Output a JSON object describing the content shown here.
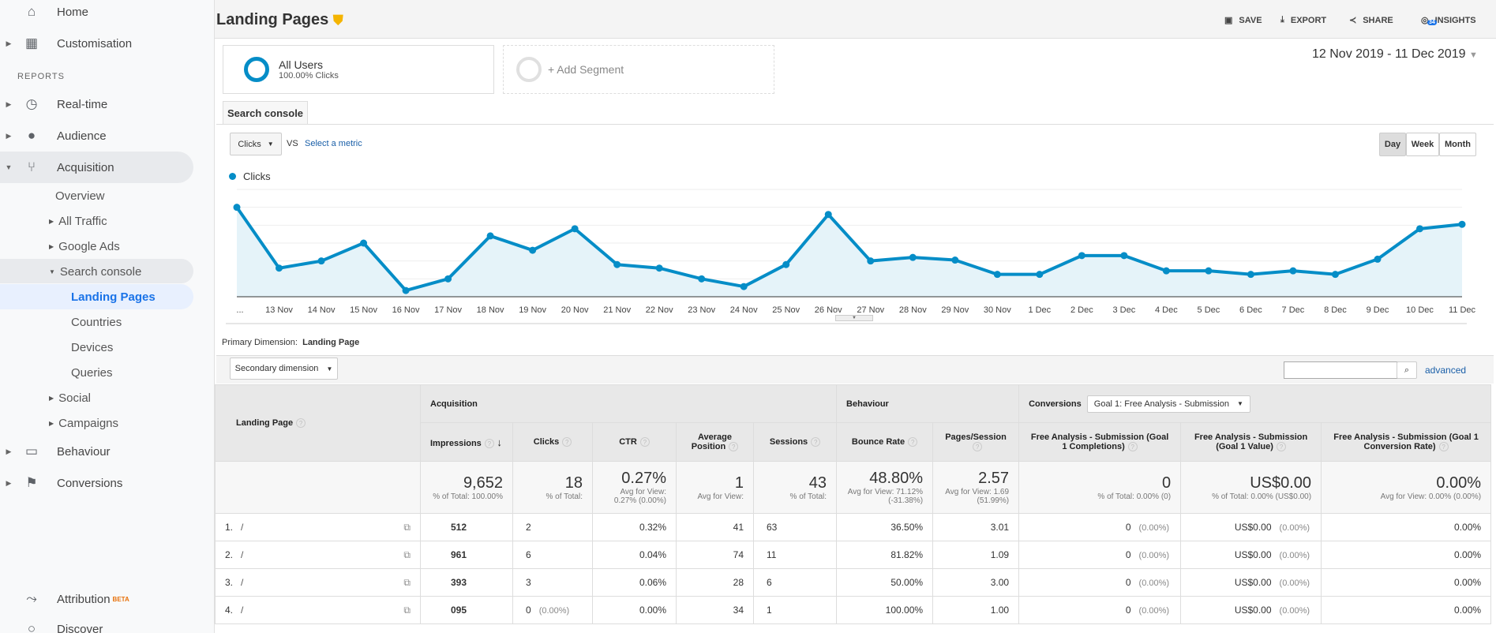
{
  "sidebar": {
    "home": "Home",
    "customisation": "Customisation",
    "reports": "REPORTS",
    "realtime": "Real-time",
    "audience": "Audience",
    "acquisition": "Acquisition",
    "overview": "Overview",
    "all_traffic": "All Traffic",
    "google_ads": "Google Ads",
    "search_console": "Search console",
    "landing_pages": "Landing Pages",
    "countries": "Countries",
    "devices": "Devices",
    "queries": "Queries",
    "social": "Social",
    "campaigns": "Campaigns",
    "behaviour": "Behaviour",
    "conversions": "Conversions",
    "attribution": "Attribution",
    "attribution_badge": "BETA",
    "discover": "Discover"
  },
  "header": {
    "title": "Landing Pages",
    "save": "SAVE",
    "export": "EXPORT",
    "share": "SHARE",
    "insights": "INSIGHTS",
    "insights_count": "34"
  },
  "segments": {
    "all_users": "All Users",
    "all_users_sub": "100.00% Clicks",
    "add": "+ Add Segment"
  },
  "date_range": "12 Nov 2019 - 11 Dec 2019",
  "explorer": {
    "tab": "Search console",
    "metric": "Clicks",
    "vs": "VS",
    "select_metric": "Select a metric",
    "day": "Day",
    "week": "Week",
    "month": "Month"
  },
  "colors": {
    "accent": "#058dc7",
    "fill": "#e5f3f9"
  },
  "chart_data": {
    "type": "area",
    "legend": "Clicks",
    "series": [
      {
        "name": "Clicks",
        "values": [
          5.0,
          1.6,
          2.0,
          3.0,
          0.35,
          1.0,
          3.4,
          2.6,
          3.8,
          1.8,
          1.6,
          1.0,
          0.57,
          1.8,
          4.6,
          2.0,
          2.2,
          2.05,
          1.25,
          1.25,
          2.3,
          2.3,
          1.45,
          1.45,
          1.25,
          1.45,
          1.25,
          2.1,
          3.8,
          4.05
        ]
      }
    ],
    "categories": [
      "...",
      "13 Nov",
      "14 Nov",
      "15 Nov",
      "16 Nov",
      "17 Nov",
      "18 Nov",
      "19 Nov",
      "20 Nov",
      "21 Nov",
      "22 Nov",
      "23 Nov",
      "24 Nov",
      "25 Nov",
      "26 Nov",
      "27 Nov",
      "28 Nov",
      "29 Nov",
      "30 Nov",
      "1 Dec",
      "2 Dec",
      "3 Dec",
      "4 Dec",
      "5 Dec",
      "6 Dec",
      "7 Dec",
      "8 Dec",
      "9 Dec",
      "10 Dec",
      "11 Dec"
    ],
    "ylim": [
      0,
      6
    ],
    "grid": true
  },
  "table": {
    "primary_label": "Primary Dimension:",
    "primary_value": "Landing Page",
    "secondary": "Secondary dimension",
    "advanced": "advanced",
    "search_value": "",
    "groups": {
      "acquisition": "Acquisition",
      "behaviour": "Behaviour",
      "conversions": "Conversions",
      "goal_select": "Goal 1: Free Analysis - Submission"
    },
    "dim_header": "Landing Page",
    "columns": [
      "Impressions",
      "Clicks",
      "CTR",
      "Average Position",
      "Sessions",
      "Bounce Rate",
      "Pages/Session",
      "Free Analysis - Submission (Goal 1 Completions)",
      "Free Analysis - Submission (Goal 1 Value)",
      "Free Analysis - Submission (Goal 1 Conversion Rate)"
    ],
    "summary": [
      [
        "9,652",
        "% of Total: 100.00%"
      ],
      [
        "18",
        "% of Total:"
      ],
      [
        "0.27%",
        "Avg for View: 0.27% (0.00%)"
      ],
      [
        "1",
        "Avg for View:"
      ],
      [
        "43",
        "% of Total:"
      ],
      [
        "48.80%",
        "Avg for View: 71.12% (-31.38%)"
      ],
      [
        "2.57",
        "Avg for View: 1.69 (51.99%)"
      ],
      [
        "0",
        "% of Total: 0.00% (0)"
      ],
      [
        "US$0.00",
        "% of Total: 0.00% (US$0.00)"
      ],
      [
        "0.00%",
        "Avg for View: 0.00% (0.00%)"
      ]
    ],
    "rows": [
      {
        "n": "1.",
        "page": "/",
        "cells": [
          "512",
          "2",
          "0.32%",
          "41",
          "63",
          "36.50%",
          "3.01",
          "0",
          "US$0.00",
          "0.00%"
        ],
        "pcts": [
          "",
          "",
          "",
          "",
          "",
          "",
          "",
          "(0.00%)",
          "(0.00%)",
          ""
        ]
      },
      {
        "n": "2.",
        "page": "/",
        "cells": [
          "961",
          "6",
          "0.04%",
          "74",
          "11",
          "81.82%",
          "1.09",
          "0",
          "US$0.00",
          "0.00%"
        ],
        "pcts": [
          "",
          "",
          "",
          "",
          "",
          "",
          "",
          "(0.00%)",
          "(0.00%)",
          ""
        ]
      },
      {
        "n": "3.",
        "page": "/",
        "cells": [
          "393",
          "3",
          "0.06%",
          "28",
          "6",
          "50.00%",
          "3.00",
          "0",
          "US$0.00",
          "0.00%"
        ],
        "pcts": [
          "",
          "",
          "",
          "",
          "",
          "",
          "",
          "(0.00%)",
          "(0.00%)",
          ""
        ]
      },
      {
        "n": "4.",
        "page": "/",
        "cells": [
          "095",
          "0",
          "0.00%",
          "34",
          "1",
          "100.00%",
          "1.00",
          "0",
          "US$0.00",
          "0.00%"
        ],
        "pcts": [
          "",
          "(0.00%)",
          "",
          "",
          "",
          "",
          "",
          "(0.00%)",
          "(0.00%)",
          ""
        ]
      }
    ]
  }
}
